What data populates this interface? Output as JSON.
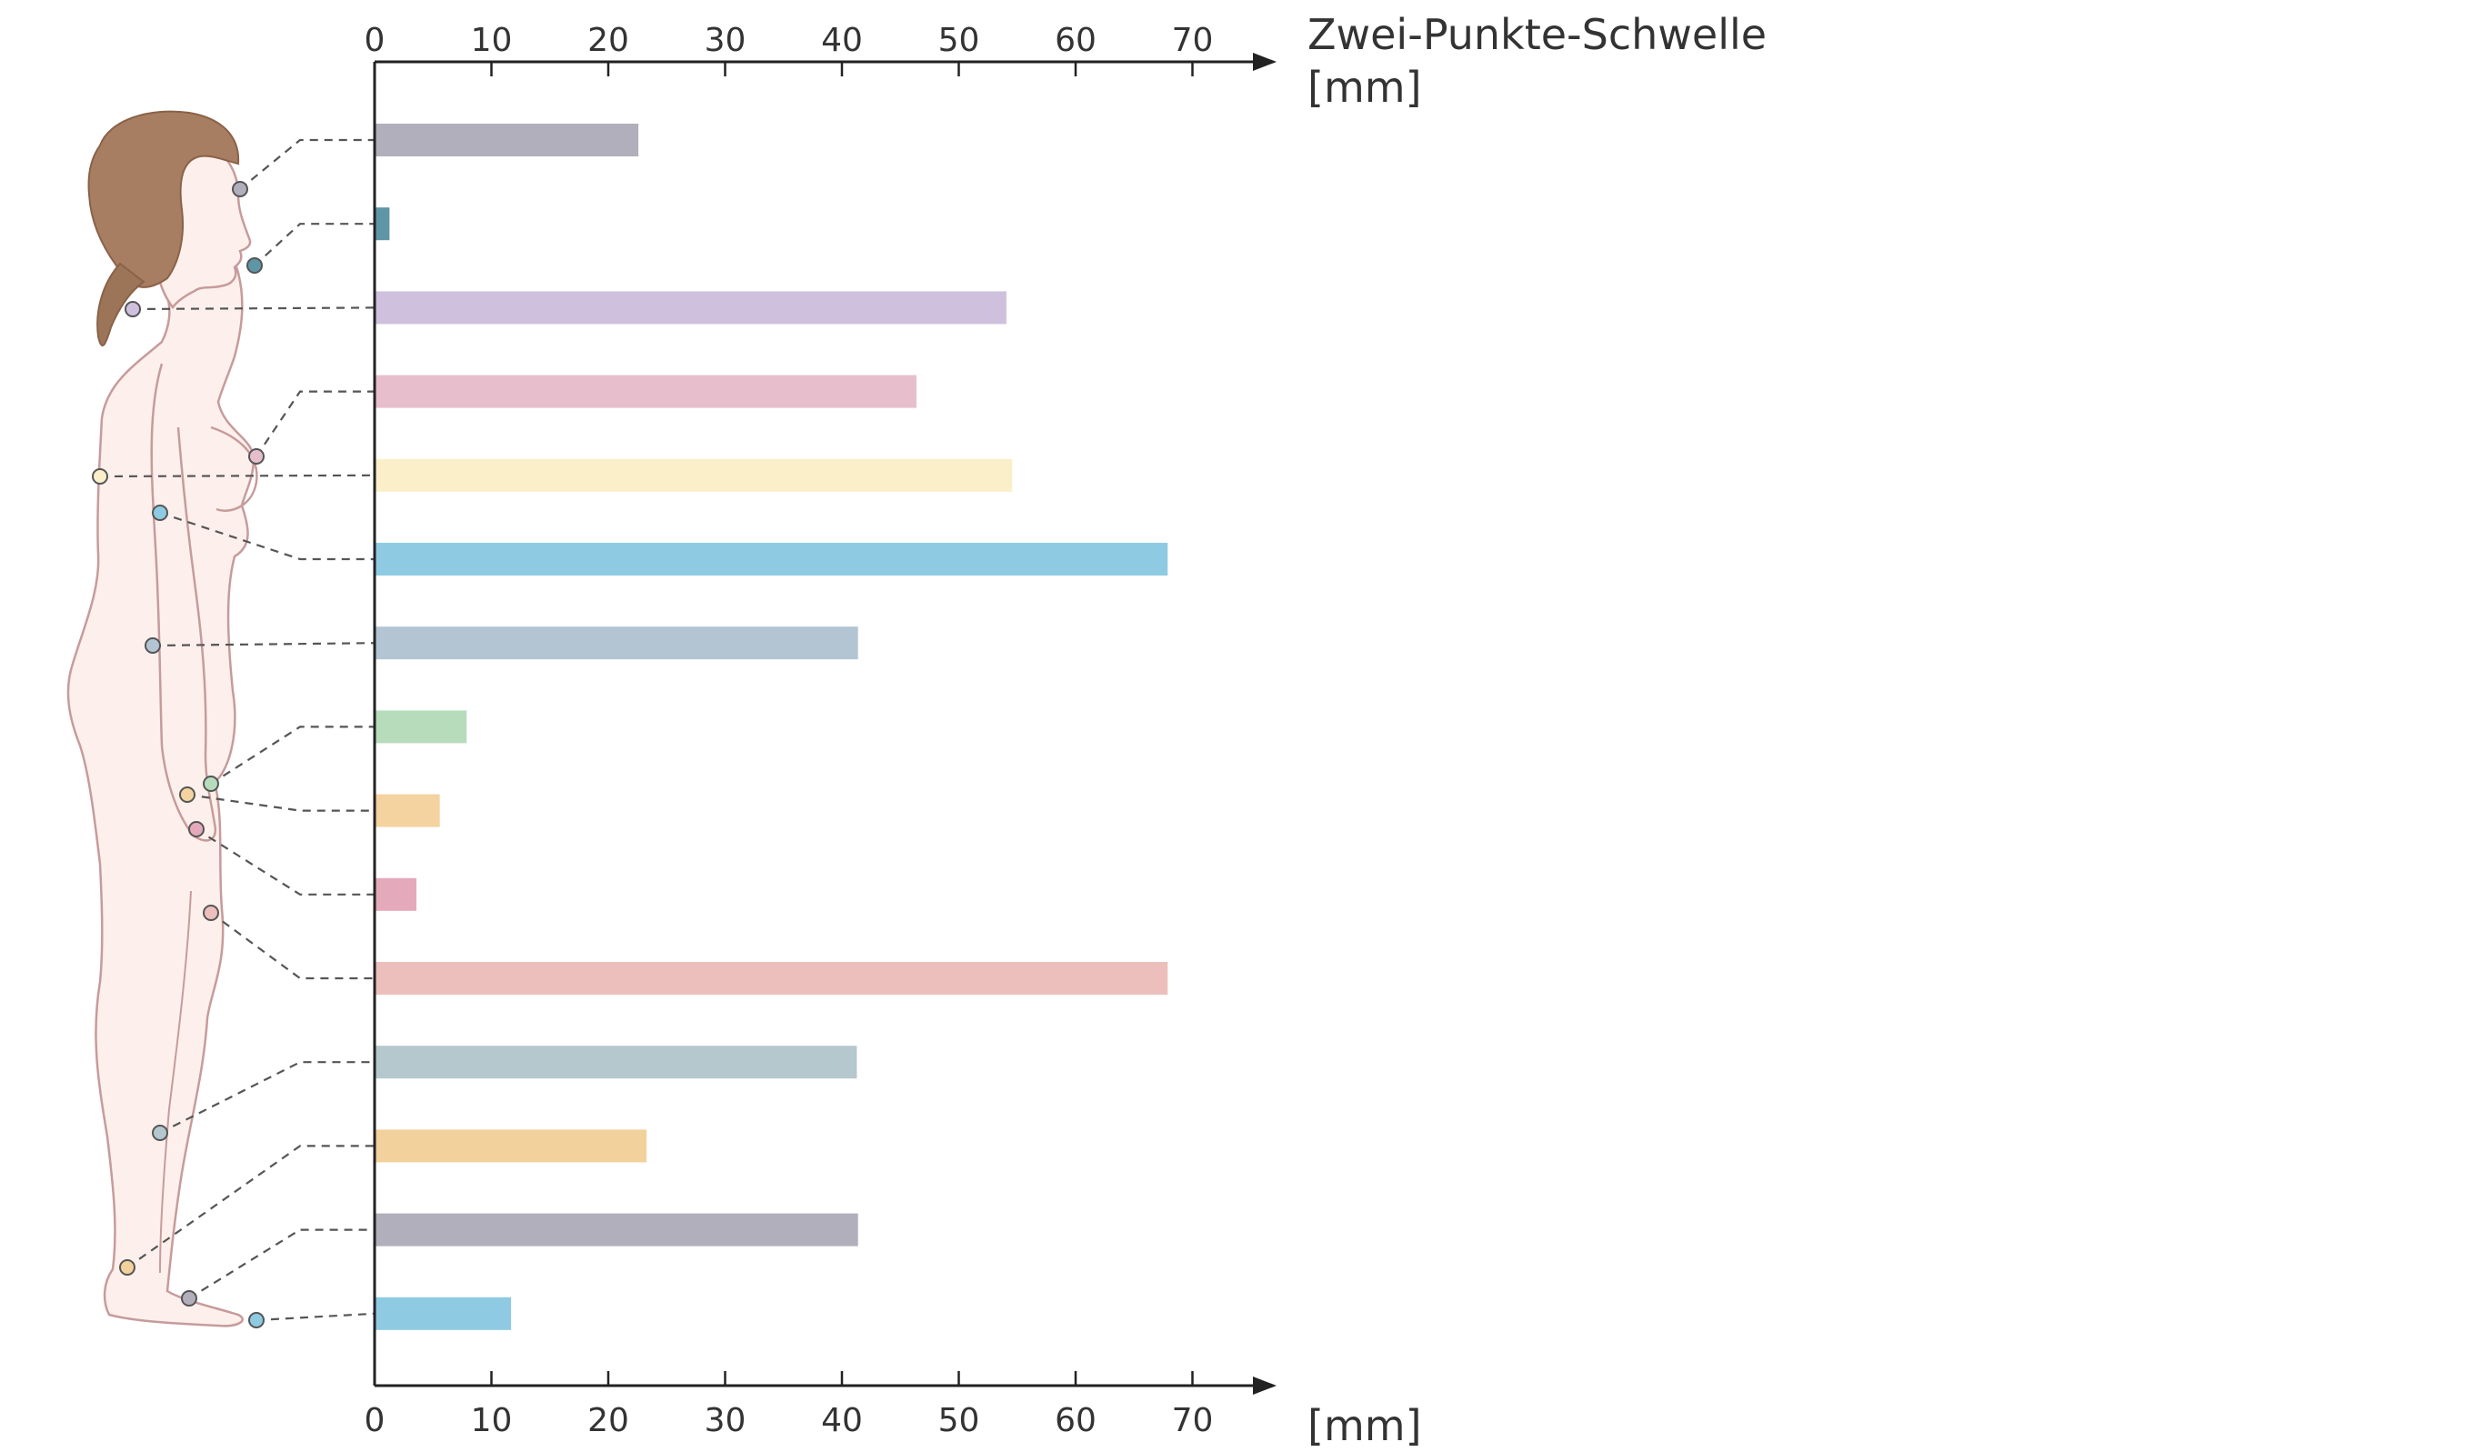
{
  "chart_data": {
    "type": "bar",
    "orientation": "horizontal",
    "title": "Zwei-Punkte-Schwelle",
    "xlabel_top": "[mm]",
    "xlabel_bottom": "[mm]",
    "xlim": [
      0,
      75
    ],
    "xticks": [
      0,
      10,
      20,
      30,
      40,
      50,
      60,
      70
    ],
    "grid": false,
    "legend": "none",
    "bars": [
      {
        "value": 22.5,
        "color": "#b0afbb"
      },
      {
        "value": 1.2,
        "color": "#5f96a6"
      },
      {
        "value": 54,
        "color": "#cfc1dd"
      },
      {
        "value": 46.3,
        "color": "#e7bfcc"
      },
      {
        "value": 54.5,
        "color": "#fbefc9"
      },
      {
        "value": 67.8,
        "color": "#8ecbe3"
      },
      {
        "value": 41.3,
        "color": "#b3c5d3"
      },
      {
        "value": 7.8,
        "color": "#b7dcbc"
      },
      {
        "value": 5.5,
        "color": "#f4d3a0"
      },
      {
        "value": 3.5,
        "color": "#e4a9bb"
      },
      {
        "value": 67.8,
        "color": "#edbfbc"
      },
      {
        "value": 41.2,
        "color": "#b5c8ce"
      },
      {
        "value": 23.2,
        "color": "#f3d19d"
      },
      {
        "value": 41.3,
        "color": "#b0afbb"
      },
      {
        "value": 11.6,
        "color": "#8ecbe3"
      }
    ]
  }
}
